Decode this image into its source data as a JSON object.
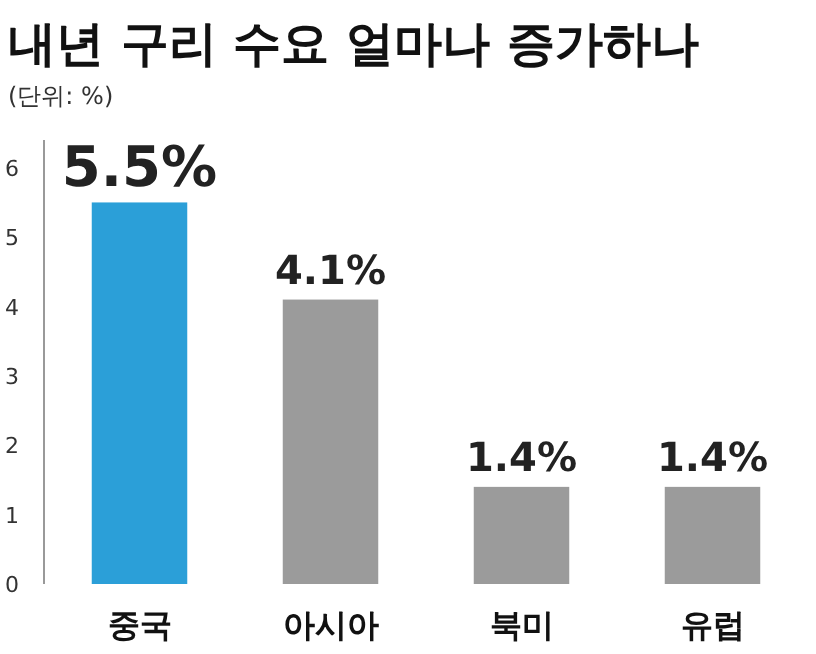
{
  "chart_data": {
    "type": "bar",
    "title": "내년 구리 수요 얼마나 증가하나",
    "subtitle": "(단위: %)",
    "categories": [
      "중국",
      "아시아",
      "북미",
      "유럽"
    ],
    "values": [
      5.5,
      4.1,
      1.4,
      1.4
    ],
    "colors": [
      "#2b9fd8",
      "#9b9b9b",
      "#9b9b9b",
      "#9b9b9b"
    ],
    "value_labels": [
      "5.5%",
      "4.1%",
      "1.4%",
      "1.4%"
    ],
    "ylim": [
      0,
      6.4
    ],
    "yticks": [
      0,
      1,
      2,
      3,
      4,
      5,
      6
    ]
  }
}
